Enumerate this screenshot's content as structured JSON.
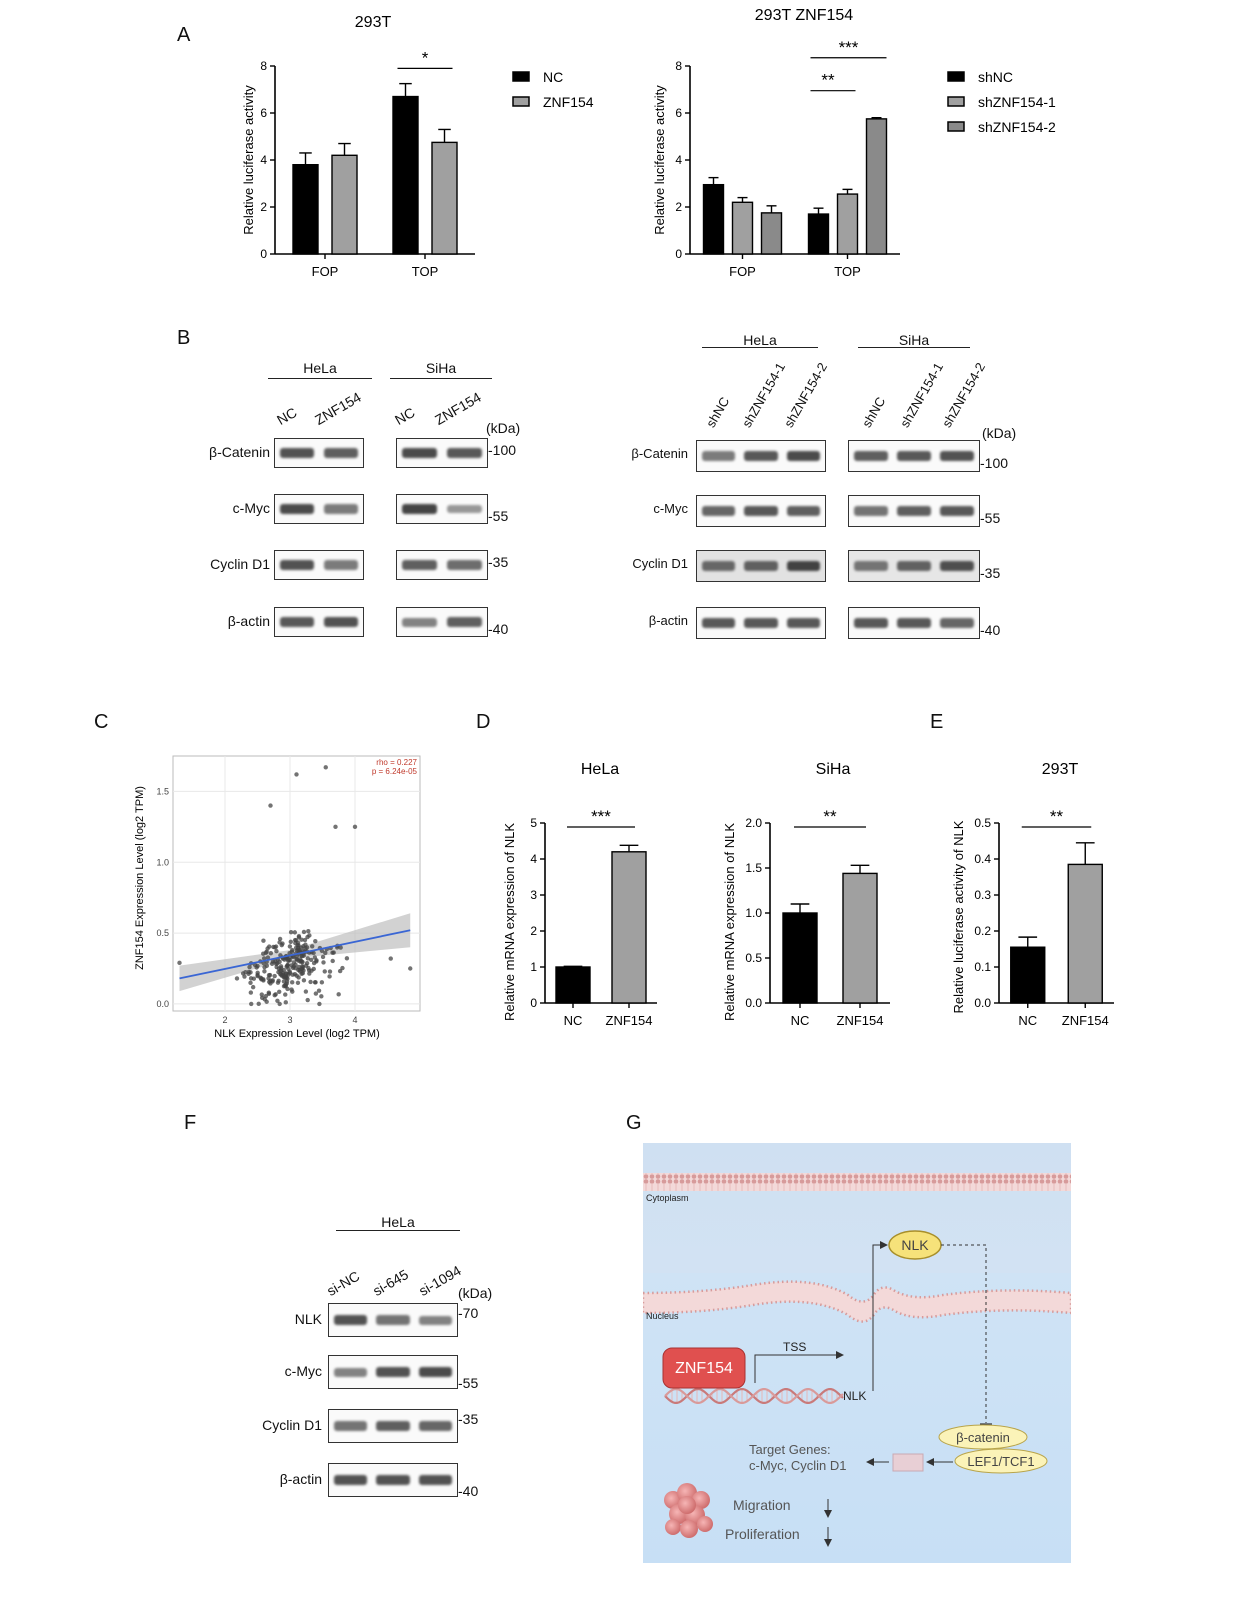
{
  "panels": {
    "A": "A",
    "B": "B",
    "C": "C",
    "D": "D",
    "E": "E",
    "F": "F",
    "G": "G"
  },
  "chart_data": [
    {
      "id": "A1",
      "type": "bar",
      "title": "293T",
      "categories": [
        "FOP",
        "TOP"
      ],
      "ylabel": "Relative luciferase activity",
      "ylim": [
        0,
        8
      ],
      "yticks": [
        0,
        2,
        4,
        6,
        8
      ],
      "series": [
        {
          "name": "NC",
          "color": "#000000",
          "values": [
            3.8,
            6.7
          ],
          "errors": [
            0.5,
            0.55
          ]
        },
        {
          "name": "ZNF154",
          "color": "#a0a0a0",
          "values": [
            4.2,
            4.75
          ],
          "errors": [
            0.5,
            0.55
          ]
        }
      ],
      "significance": [
        {
          "label": "*",
          "group": "TOP"
        }
      ]
    },
    {
      "id": "A2",
      "type": "bar",
      "title": "293T ZNF154",
      "categories": [
        "FOP",
        "TOP"
      ],
      "ylabel": "Relative luciferase activity",
      "ylim": [
        0,
        8
      ],
      "yticks": [
        0,
        2,
        4,
        6,
        8
      ],
      "series": [
        {
          "name": "shNC",
          "color": "#000000",
          "values": [
            2.95,
            1.7
          ],
          "errors": [
            0.3,
            0.25
          ]
        },
        {
          "name": "shZNF154-1",
          "color": "#a0a0a0",
          "values": [
            2.2,
            2.55
          ],
          "errors": [
            0.2,
            0.2
          ]
        },
        {
          "name": "shZNF154-2",
          "color": "#8a8a8a",
          "values": [
            1.75,
            5.75
          ],
          "errors": [
            0.3,
            0.05
          ]
        }
      ],
      "significance": [
        {
          "label": "**"
        },
        {
          "label": "***"
        }
      ]
    },
    {
      "id": "C",
      "type": "scatter",
      "xlabel": "NLK Expression Level (log2 TPM)",
      "ylabel": "ZNF154 Expression Level (log2 TPM)",
      "xlim": [
        1.2,
        5.0
      ],
      "ylim": [
        -0.05,
        1.75
      ],
      "xticks": [
        2,
        3,
        4
      ],
      "yticks": [
        0.0,
        0.5,
        1.0,
        1.5
      ],
      "yticklabels": [
        "0.0",
        "0.5",
        "1.0",
        "1.5"
      ],
      "annotation": [
        "rho = 0.227",
        "p = 6.24e-05"
      ],
      "fit": {
        "x0": 1.3,
        "y0": 0.18,
        "x1": 4.85,
        "y1": 0.52
      }
    },
    {
      "id": "D1",
      "type": "bar",
      "title": "HeLa",
      "categories": [
        "NC",
        "ZNF154"
      ],
      "ylabel": "Relative mRNA expression of NLK",
      "ylim": [
        0,
        5
      ],
      "yticks": [
        0,
        1,
        2,
        3,
        4,
        5
      ],
      "values": [
        1.0,
        4.2
      ],
      "errors": [
        0.02,
        0.18
      ],
      "colors": [
        "#000000",
        "#a0a0a0"
      ],
      "significance": "***"
    },
    {
      "id": "D2",
      "type": "bar",
      "title": "SiHa",
      "categories": [
        "NC",
        "ZNF154"
      ],
      "ylabel": "Relative mRNA expression of NLK",
      "ylim": [
        0,
        2
      ],
      "yticks": [
        0.0,
        0.5,
        1.0,
        1.5,
        2.0
      ],
      "yticklabels": [
        "0.0",
        "0.5",
        "1.0",
        "1.5",
        "2.0"
      ],
      "values": [
        1.0,
        1.44
      ],
      "errors": [
        0.1,
        0.09
      ],
      "colors": [
        "#000000",
        "#a0a0a0"
      ],
      "significance": "**"
    },
    {
      "id": "E",
      "type": "bar",
      "title": "293T",
      "categories": [
        "NC",
        "ZNF154"
      ],
      "ylabel": "Relative luciferase activity of NLK",
      "ylim": [
        0,
        0.5
      ],
      "yticks": [
        0.0,
        0.1,
        0.2,
        0.3,
        0.4,
        0.5
      ],
      "yticklabels": [
        "0.0",
        "0.1",
        "0.2",
        "0.3",
        "0.4",
        "0.5"
      ],
      "values": [
        0.155,
        0.385
      ],
      "errors": [
        0.028,
        0.06
      ],
      "colors": [
        "#000000",
        "#a0a0a0"
      ],
      "significance": "**"
    }
  ],
  "western_B1": {
    "groups": [
      "HeLa",
      "SiHa"
    ],
    "lanes": [
      "NC",
      "ZNF154",
      "NC",
      "ZNF154"
    ],
    "unit": "(kDa)",
    "rows": [
      {
        "label": "β-Catenin",
        "kda": "-100",
        "hela": [
          0.85,
          0.75
        ],
        "siha": [
          0.9,
          0.8
        ]
      },
      {
        "label": "c-Myc",
        "kda": "-55",
        "hela": [
          0.9,
          0.55
        ],
        "siha": [
          0.95,
          0.35
        ]
      },
      {
        "label": "Cyclin D1",
        "kda": "-35",
        "hela": [
          0.85,
          0.55
        ],
        "siha": [
          0.75,
          0.65
        ]
      },
      {
        "label": "β-actin",
        "kda": "-40",
        "hela": [
          0.8,
          0.85
        ],
        "siha": [
          0.5,
          0.75
        ]
      }
    ]
  },
  "western_B2": {
    "groups": [
      "HeLa",
      "SiHa"
    ],
    "lanes": [
      "shNC",
      "shZNF154-1",
      "shZNF154-2",
      "shNC",
      "shZNF154-1",
      "shZNF154-2"
    ],
    "unit": "(kDa)",
    "rows": [
      {
        "label": "β-Catenin",
        "kda": "-100",
        "hela": [
          0.55,
          0.8,
          0.9
        ],
        "siha": [
          0.75,
          0.8,
          0.85
        ]
      },
      {
        "label": "c-Myc",
        "kda": "-55",
        "hela": [
          0.7,
          0.8,
          0.75
        ],
        "siha": [
          0.6,
          0.75,
          0.8
        ]
      },
      {
        "label": "Cyclin D1",
        "kda": "-35",
        "hela": [
          0.65,
          0.7,
          0.95
        ],
        "siha": [
          0.55,
          0.7,
          0.85
        ]
      },
      {
        "label": "β-actin",
        "kda": "-40",
        "hela": [
          0.8,
          0.8,
          0.8
        ],
        "siha": [
          0.8,
          0.8,
          0.7
        ]
      }
    ]
  },
  "western_F": {
    "group": "HeLa",
    "lanes": [
      "si-NC",
      "si-645",
      "si-1094"
    ],
    "unit": "(kDa)",
    "rows": [
      {
        "label": "NLK",
        "kda": "-70",
        "vals": [
          0.85,
          0.6,
          0.5
        ]
      },
      {
        "label": "c-Myc",
        "kda": "-55",
        "vals": [
          0.5,
          0.85,
          0.9
        ]
      },
      {
        "label": "Cyclin D1",
        "kda": "-35",
        "vals": [
          0.6,
          0.75,
          0.7
        ]
      },
      {
        "label": "β-actin",
        "kda": "-40",
        "vals": [
          0.85,
          0.85,
          0.85
        ]
      }
    ]
  },
  "diagram": {
    "cytoplasm": "Cytoplasm",
    "nucleus": "Nucleus",
    "nlk_protein": "NLK",
    "znf154": "ZNF154",
    "tss": "TSS",
    "nlk_gene": "NLK",
    "beta_catenin": "β-catenin",
    "lef1": "LEF1/TCF1",
    "target_genes_1": "Target Genes:",
    "target_genes_2": "c-Myc, Cyclin D1",
    "migration": "Migration",
    "proliferation": "Proliferation"
  }
}
